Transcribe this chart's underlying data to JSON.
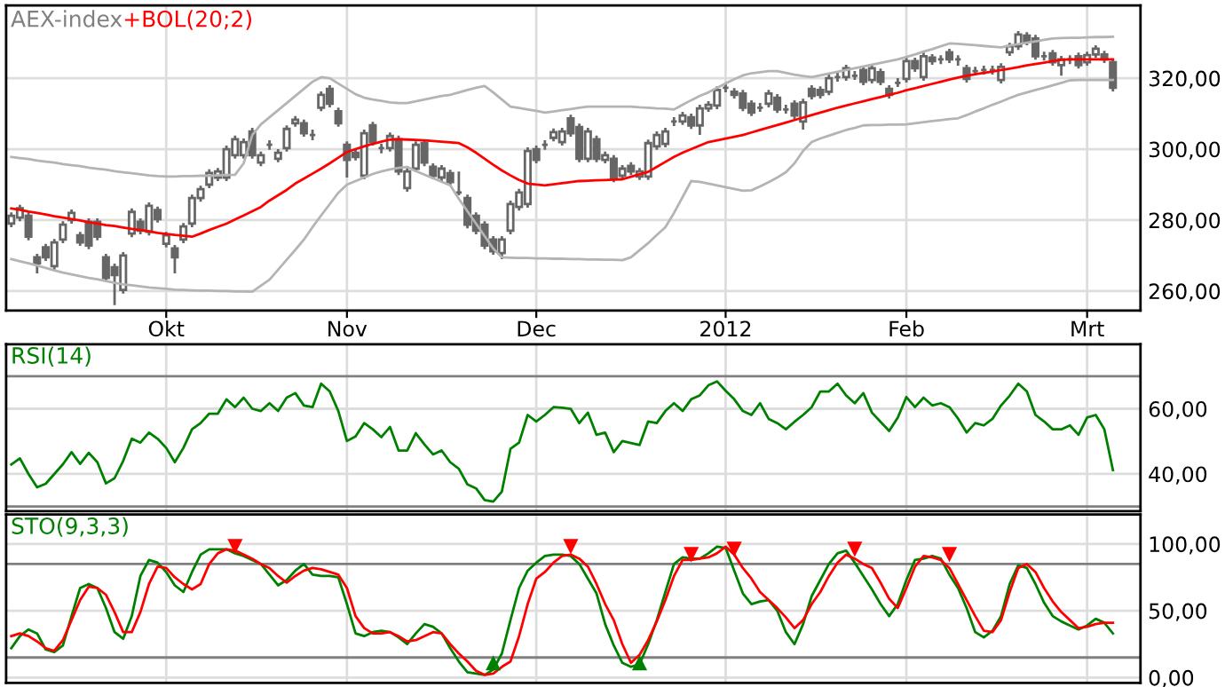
{
  "chart_data": [
    {
      "type": "candlestick",
      "title": "AEX-index",
      "color": "#666666",
      "legend": "top left",
      "grid": true,
      "categories": [
        null,
        null,
        null,
        null,
        null,
        null,
        null,
        null,
        null,
        null,
        null,
        null,
        null,
        null,
        null,
        null,
        null,
        null,
        "Okt",
        null,
        null,
        null,
        null,
        null,
        null,
        null,
        null,
        null,
        null,
        null,
        null,
        null,
        null,
        null,
        null,
        null,
        null,
        null,
        null,
        "Nov",
        null,
        null,
        null,
        null,
        null,
        null,
        null,
        null,
        null,
        null,
        null,
        null,
        null,
        null,
        null,
        null,
        null,
        null,
        null,
        null,
        null,
        "Dec",
        null,
        null,
        null,
        null,
        null,
        null,
        null,
        null,
        null,
        null,
        null,
        null,
        null,
        null,
        null,
        null,
        null,
        null,
        null,
        null,
        null,
        "2012",
        null,
        null,
        null,
        null,
        null,
        null,
        null,
        null,
        null,
        null,
        null,
        null,
        null,
        null,
        null,
        null,
        null,
        null,
        null,
        null,
        "Feb",
        null,
        null,
        null,
        null,
        null,
        null,
        null,
        null,
        null,
        null,
        null,
        null,
        null,
        null,
        null,
        null,
        null,
        null,
        null,
        null,
        "Mrt",
        null,
        null,
        null
      ],
      "ohlc": [
        [
          279.0,
          282.2,
          278.0,
          281.2
        ],
        [
          280.7,
          284.3,
          279.7,
          283.3
        ],
        [
          281.2,
          282.2,
          274.3,
          275.3
        ],
        [
          269.5,
          270.5,
          265.0,
          267.8
        ],
        [
          272.3,
          273.3,
          268.5,
          269.5
        ],
        [
          267.0,
          274.7,
          266.0,
          273.7
        ],
        [
          274.5,
          279.7,
          273.5,
          278.7
        ],
        [
          280.0,
          283.0,
          279.0,
          282.0
        ],
        [
          275.7,
          276.7,
          272.7,
          273.7
        ],
        [
          279.5,
          280.5,
          271.8,
          272.8
        ],
        [
          279.5,
          280.5,
          274.3,
          275.3
        ],
        [
          269.5,
          270.5,
          262.7,
          263.7
        ],
        [
          266.7,
          267.7,
          256.0,
          264.5
        ],
        [
          260.3,
          271.0,
          259.3,
          270.0
        ],
        [
          276.2,
          283.3,
          275.2,
          282.3
        ],
        [
          279.5,
          280.5,
          276.0,
          277.0
        ],
        [
          276.7,
          285.0,
          275.7,
          284.0
        ],
        [
          282.8,
          283.8,
          279.3,
          280.3
        ],
        [
          273.3,
          276.7,
          272.3,
          275.7
        ],
        [
          272.0,
          273.0,
          265.0,
          269.5
        ],
        [
          274.5,
          279.2,
          273.5,
          278.2
        ],
        [
          279.0,
          287.2,
          278.0,
          286.2
        ],
        [
          286.2,
          289.7,
          285.2,
          288.7
        ],
        [
          290.0,
          294.3,
          289.0,
          293.3
        ],
        [
          292.0,
          294.7,
          291.0,
          293.7
        ],
        [
          292.0,
          301.0,
          291.0,
          300.0
        ],
        [
          298.3,
          303.8,
          297.3,
          302.8
        ],
        [
          298.3,
          303.0,
          297.3,
          302.0
        ],
        [
          305.0,
          306.0,
          297.3,
          298.3
        ],
        [
          296.2,
          299.3,
          295.2,
          298.3
        ],
        [
          301.2,
          302.5,
          299.8,
          301.2
        ],
        [
          297.3,
          300.0,
          296.3,
          299.0
        ],
        [
          300.3,
          306.7,
          299.3,
          305.7
        ],
        [
          307.3,
          309.3,
          306.3,
          308.3
        ],
        [
          307.3,
          308.3,
          303.5,
          304.5
        ],
        [
          304.0,
          305.5,
          302.5,
          304.0
        ],
        [
          311.7,
          316.3,
          310.7,
          315.3
        ],
        [
          317.0,
          318.0,
          311.8,
          312.8
        ],
        [
          310.7,
          311.7,
          306.3,
          307.3
        ],
        [
          301.2,
          302.2,
          292.0,
          297.0
        ],
        [
          299.0,
          300.0,
          296.8,
          297.8
        ],
        [
          292.5,
          305.5,
          291.5,
          304.5
        ],
        [
          306.7,
          307.7,
          301.0,
          302.0
        ],
        [
          300.3,
          301.5,
          298.8,
          300.3
        ],
        [
          300.3,
          304.7,
          299.3,
          303.7
        ],
        [
          302.8,
          303.8,
          292.7,
          293.7
        ],
        [
          289.0,
          294.7,
          288.0,
          293.7
        ],
        [
          294.5,
          302.2,
          293.5,
          301.2
        ],
        [
          301.7,
          302.7,
          295.2,
          296.2
        ],
        [
          295.0,
          296.0,
          291.5,
          292.5
        ],
        [
          292.0,
          295.5,
          291.0,
          294.5
        ],
        [
          293.2,
          294.2,
          289.7,
          290.7
        ],
        [
          287.8,
          293.7,
          287.0,
          287.8
        ],
        [
          286.2,
          287.2,
          277.7,
          278.7
        ],
        [
          281.2,
          282.2,
          276.0,
          277.0
        ],
        [
          278.7,
          279.7,
          271.8,
          272.8
        ],
        [
          274.5,
          275.5,
          270.2,
          271.2
        ],
        [
          270.7,
          275.5,
          269.0,
          274.5
        ],
        [
          277.0,
          285.5,
          276.0,
          284.5
        ],
        [
          283.7,
          288.8,
          282.7,
          287.8
        ],
        [
          284.5,
          300.5,
          283.5,
          299.5
        ],
        [
          300.0,
          301.0,
          296.0,
          297.0
        ],
        [
          301.2,
          302.5,
          299.8,
          301.2
        ],
        [
          303.2,
          305.8,
          302.2,
          304.8
        ],
        [
          302.0,
          306.0,
          301.0,
          305.0
        ],
        [
          308.7,
          309.7,
          303.5,
          304.5
        ],
        [
          306.2,
          307.2,
          296.3,
          297.3
        ],
        [
          297.3,
          306.0,
          296.3,
          305.0
        ],
        [
          302.8,
          303.8,
          296.3,
          297.3
        ],
        [
          297.0,
          299.3,
          296.0,
          298.3
        ],
        [
          297.3,
          298.3,
          290.7,
          291.7
        ],
        [
          292.5,
          295.5,
          291.5,
          294.5
        ],
        [
          295.3,
          296.3,
          292.7,
          293.7
        ],
        [
          292.3,
          294.7,
          291.3,
          293.7
        ],
        [
          292.3,
          302.7,
          291.3,
          301.7
        ],
        [
          300.8,
          305.0,
          299.8,
          304.0
        ],
        [
          301.5,
          306.0,
          300.5,
          305.0
        ],
        [
          307.8,
          309.0,
          306.5,
          307.8
        ],
        [
          307.8,
          310.5,
          306.8,
          309.5
        ],
        [
          309.0,
          310.0,
          305.7,
          306.7
        ],
        [
          306.7,
          312.5,
          304.0,
          311.5
        ],
        [
          311.5,
          313.5,
          310.5,
          312.5
        ],
        [
          312.3,
          317.7,
          311.3,
          316.7
        ],
        [
          317.3,
          318.5,
          316.0,
          317.3
        ],
        [
          316.2,
          317.2,
          314.3,
          315.3
        ],
        [
          315.7,
          316.7,
          310.7,
          311.7
        ],
        [
          312.8,
          313.8,
          309.3,
          310.3
        ],
        [
          311.7,
          313.0,
          310.5,
          311.7
        ],
        [
          312.8,
          316.7,
          311.8,
          315.7
        ],
        [
          314.5,
          315.5,
          310.2,
          311.2
        ],
        [
          311.2,
          312.5,
          310.0,
          311.2
        ],
        [
          312.8,
          313.8,
          308.5,
          309.5
        ],
        [
          307.8,
          314.2,
          305.5,
          313.2
        ],
        [
          317.0,
          318.0,
          314.0,
          315.0
        ],
        [
          316.7,
          317.7,
          314.3,
          315.3
        ],
        [
          316.2,
          321.0,
          315.2,
          320.0
        ],
        [
          320.3,
          321.5,
          319.0,
          320.3
        ],
        [
          320.3,
          323.8,
          319.3,
          322.8
        ],
        [
          320.7,
          322.0,
          319.5,
          320.7
        ],
        [
          322.3,
          323.3,
          318.0,
          319.0
        ],
        [
          319.5,
          323.8,
          318.5,
          322.8
        ],
        [
          321.7,
          322.7,
          318.0,
          319.0
        ],
        [
          317.0,
          318.0,
          314.3,
          315.3
        ],
        [
          318.7,
          320.0,
          317.5,
          318.7
        ],
        [
          319.8,
          325.8,
          318.8,
          324.8
        ],
        [
          324.8,
          325.8,
          321.8,
          322.8
        ],
        [
          320.3,
          327.2,
          319.3,
          326.2
        ],
        [
          325.8,
          326.8,
          323.8,
          324.8
        ],
        [
          325.3,
          326.5,
          324.0,
          325.3
        ],
        [
          327.3,
          328.3,
          324.3,
          325.3
        ],
        [
          325.3,
          326.5,
          323.5,
          325.3
        ],
        [
          322.8,
          323.8,
          318.8,
          319.8
        ],
        [
          322.0,
          323.2,
          320.8,
          322.0
        ],
        [
          322.3,
          323.5,
          321.0,
          322.3
        ],
        [
          322.3,
          323.5,
          321.0,
          322.3
        ],
        [
          319.5,
          324.2,
          318.5,
          323.2
        ],
        [
          327.3,
          330.0,
          326.3,
          329.0
        ],
        [
          329.0,
          333.3,
          328.0,
          332.3
        ],
        [
          332.0,
          333.0,
          329.3,
          330.3
        ],
        [
          331.2,
          332.2,
          325.2,
          326.2
        ],
        [
          326.2,
          327.5,
          325.0,
          326.2
        ],
        [
          327.0,
          328.0,
          323.5,
          324.5
        ],
        [
          323.7,
          326.3,
          320.7,
          325.3
        ],
        [
          325.3,
          326.5,
          324.0,
          325.3
        ],
        [
          326.2,
          327.2,
          322.7,
          323.7
        ],
        [
          324.5,
          327.5,
          323.5,
          326.5
        ],
        [
          326.7,
          329.3,
          325.7,
          328.3
        ],
        [
          326.7,
          327.7,
          324.3,
          325.3
        ],
        [
          324.5,
          325.5,
          316.3,
          317.3
        ]
      ],
      "series": [
        {
          "type": "line",
          "name": "+BOL(20;2)",
          "color": "#ff0000",
          "values": [
            283.3,
            282.9,
            282.4,
            282,
            281.6,
            281.1,
            280.7,
            280.3,
            279.9,
            279.4,
            279,
            278.6,
            278.3,
            277.9,
            277.5,
            277.2,
            276.8,
            276.4,
            276.1,
            275.8,
            275.6,
            275.3,
            276.2,
            277.2,
            278.1,
            279,
            280.2,
            281.3,
            282.5,
            283.7,
            285.5,
            287,
            288.5,
            290.3,
            291.7,
            293.1,
            294.5,
            296,
            297.6,
            299.2,
            300,
            300.8,
            301.5,
            302.1,
            302.7,
            302.8,
            302.7,
            302.6,
            302.5,
            302.3,
            302.1,
            301.9,
            301.7,
            300.5,
            299,
            297.3,
            295.6,
            294,
            292.6,
            291.3,
            290.3,
            290,
            289.8,
            290.1,
            290.4,
            290.7,
            291,
            291.1,
            291.2,
            291.3,
            291.4,
            291.5,
            292.2,
            292.9,
            293.6,
            295,
            296.4,
            297.8,
            299,
            300,
            301,
            302,
            302.5,
            303,
            303.5,
            304,
            304.7,
            305.4,
            306.1,
            306.8,
            307.5,
            308.2,
            308.9,
            309.6,
            310.3,
            311,
            311.7,
            312.3,
            312.9,
            313.5,
            314.1,
            314.7,
            315.3,
            315.9,
            316.6,
            317.2,
            317.8,
            318.4,
            319,
            319.6,
            320.2,
            320.7,
            321.1,
            321.5,
            321.9,
            322.3,
            322.7,
            323.1,
            323.6,
            324,
            324.4,
            324.8,
            325.2,
            325.3,
            325.3,
            325.3,
            325.3,
            325.3,
            325.3
          ]
        },
        {
          "type": "line",
          "color": "#b4b4b4",
          "values": [
            297.8,
            297.5,
            297.2,
            296.8,
            296.5,
            296.2,
            295.8,
            295.5,
            295.2,
            294.8,
            294.5,
            294.2,
            293.8,
            293.5,
            293.2,
            292.9,
            292.6,
            292.4,
            292.3,
            292.3,
            292.4,
            292.4,
            292.5,
            292.5,
            292.6,
            292.7,
            292.8,
            296,
            304,
            307,
            309,
            311,
            313,
            315,
            317,
            319,
            320.3,
            320,
            318.5,
            317,
            315.5,
            314.5,
            314,
            313.6,
            313.2,
            313,
            313,
            313.5,
            314,
            314.5,
            315,
            315.3,
            316,
            316.7,
            317.3,
            317.8,
            316,
            314,
            312,
            311.6,
            311.2,
            310.8,
            310.3,
            310.6,
            311,
            311.3,
            311.7,
            312,
            312,
            312,
            312,
            312,
            312,
            311.8,
            311.7,
            311.5,
            311.4,
            311.2,
            312.5,
            313.8,
            315,
            316,
            317.3,
            318.5,
            319.7,
            320.8,
            321.4,
            321.7,
            322,
            322,
            321.5,
            321,
            320.6,
            320.3,
            320.8,
            321.3,
            321.8,
            322.3,
            322.8,
            323.3,
            323.8,
            324.3,
            324.8,
            325.3,
            326,
            326.7,
            327.5,
            328.2,
            329,
            329.8,
            329.7,
            329.5,
            329.3,
            329.1,
            328.9,
            328.7,
            329.2,
            329.6,
            330,
            330.4,
            330.8,
            331.2,
            331.3,
            331.4,
            331.4,
            331.5,
            331.6,
            331.6,
            331.7
          ]
        },
        {
          "type": "line",
          "color": "#b4b4b4",
          "values": [
            269,
            268.4,
            267.8,
            267.2,
            266.5,
            265.8,
            265.2,
            264.7,
            264.2,
            263.7,
            263.3,
            262.8,
            262.3,
            261.9,
            261.6,
            261.3,
            261,
            260.8,
            260.6,
            260.4,
            260.3,
            260.2,
            260.1,
            260.1,
            260,
            260,
            259.9,
            259.9,
            259.8,
            261.5,
            263.2,
            266,
            268.8,
            271.6,
            274.5,
            278,
            281.3,
            284.5,
            287.7,
            290,
            291,
            292,
            293,
            293.7,
            294.3,
            294.7,
            295,
            293.8,
            292.8,
            291.8,
            290.8,
            289.8,
            286,
            282.5,
            279,
            275.5,
            272,
            269.5,
            269.4,
            269.3,
            269.3,
            269.2,
            269.2,
            269.1,
            269.1,
            269,
            269,
            268.9,
            268.9,
            268.8,
            268.8,
            268.7,
            269.5,
            271.5,
            273.5,
            275.8,
            278,
            282,
            286.5,
            291,
            290.8,
            290.3,
            289.8,
            289.3,
            288.8,
            288.3,
            288.4,
            289.5,
            290.7,
            292,
            293.5,
            296,
            299.5,
            302,
            303,
            303.8,
            304.6,
            305.4,
            306,
            306.7,
            306.8,
            306.8,
            306.9,
            306.9,
            307,
            307.3,
            307.6,
            307.9,
            308.2,
            308.5,
            308.7,
            309.6,
            310.6,
            311.5,
            312.5,
            313.4,
            314.4,
            315.3,
            316,
            316.7,
            317.3,
            318,
            318.7,
            319.4,
            319.5,
            319.5,
            319.5,
            319.5,
            319.5
          ]
        }
      ],
      "ylim": [
        254.5,
        340.5
      ],
      "yticks": [
        {
          "value": 260,
          "label": "260,00"
        },
        {
          "value": 280,
          "label": "280,00"
        },
        {
          "value": 300,
          "label": "300,00"
        },
        {
          "value": 320,
          "label": "320,00"
        }
      ]
    },
    {
      "type": "line",
      "legend": "top left",
      "grid": true,
      "tick_labels": "y",
      "categories": [
        null,
        null,
        null,
        null,
        null,
        null,
        null,
        null,
        null,
        null,
        null,
        null,
        null,
        null,
        null,
        null,
        null,
        null,
        null,
        null,
        null,
        null,
        null,
        null,
        null,
        null,
        null,
        null,
        null,
        null,
        null,
        null,
        null,
        null,
        null,
        null,
        null,
        null,
        null,
        null,
        null,
        null,
        null,
        null,
        null,
        null,
        null,
        null,
        null,
        null,
        null,
        null,
        null,
        null,
        null,
        null,
        null,
        null,
        null,
        null,
        null,
        null,
        null,
        null,
        null,
        null,
        null,
        null,
        null,
        null,
        null,
        null,
        null,
        null,
        null,
        null,
        null,
        null,
        null,
        null,
        null,
        null,
        null,
        null,
        null,
        null,
        null,
        null,
        null,
        null,
        null,
        null,
        null,
        null,
        null,
        null,
        null,
        null,
        null,
        null,
        null,
        null,
        null,
        null,
        null,
        null,
        null,
        null,
        null,
        null,
        null,
        null,
        null,
        null,
        null,
        null,
        null,
        null,
        null,
        null,
        null,
        null,
        null,
        null,
        null,
        null,
        null,
        null,
        null
      ],
      "series": [
        {
          "name": "RSI(14)",
          "color": "#008000",
          "values": [
            42.9,
            44.8,
            40,
            35.9,
            37,
            40,
            43,
            46.7,
            43.1,
            46.5,
            43.6,
            37.1,
            38.7,
            44,
            50.8,
            49.6,
            52.7,
            50.8,
            48,
            43.6,
            48,
            53.7,
            55.6,
            58.5,
            58.5,
            62.9,
            60.5,
            63.4,
            60,
            59.3,
            61.7,
            59.3,
            63.4,
            64.8,
            61,
            60.5,
            67.7,
            65.3,
            59.3,
            50.1,
            51.5,
            55.6,
            53.7,
            51.3,
            54.4,
            47.2,
            47.2,
            52.5,
            49.1,
            46,
            47.2,
            43.6,
            41.6,
            36.8,
            35.6,
            32,
            31.5,
            34.6,
            47.7,
            49.6,
            58.1,
            56.1,
            58.1,
            60.5,
            60.3,
            60,
            55.6,
            58.8,
            52,
            52.7,
            46.7,
            50.1,
            49.5,
            48.9,
            56.1,
            55.6,
            59.3,
            61.7,
            59.3,
            62.9,
            64.1,
            67.2,
            68.4,
            65.5,
            62.9,
            59.3,
            58.1,
            61.7,
            56.9,
            55.6,
            53.7,
            56,
            58.1,
            60.5,
            65.3,
            65.3,
            67.7,
            64.1,
            61.7,
            64.8,
            58.8,
            56,
            53.2,
            57.3,
            63.6,
            60.5,
            63.4,
            61,
            61.7,
            60.5,
            57,
            52.7,
            55.6,
            54.9,
            56.9,
            61,
            64,
            67.7,
            65.3,
            58.1,
            56.1,
            53.7,
            53.7,
            54.9,
            52,
            57.3,
            58.1,
            53.7,
            41.2
          ]
        }
      ],
      "ref_lines": [
        {
          "axis": "y",
          "value": 70,
          "color": "#808080"
        },
        {
          "axis": "y",
          "value": 30,
          "color": "#808080"
        }
      ],
      "ylim": [
        28.6,
        79.8
      ],
      "yticks": [
        {
          "value": 40,
          "label": "40,00"
        },
        {
          "value": 60,
          "label": "60,00"
        }
      ]
    },
    {
      "type": "line",
      "legend": "top left",
      "grid": true,
      "tick_labels": "y",
      "categories": [
        null,
        null,
        null,
        null,
        null,
        null,
        null,
        null,
        null,
        null,
        null,
        null,
        null,
        null,
        null,
        null,
        null,
        null,
        null,
        null,
        null,
        null,
        null,
        null,
        null,
        null,
        null,
        null,
        null,
        null,
        null,
        null,
        null,
        null,
        null,
        null,
        null,
        null,
        null,
        null,
        null,
        null,
        null,
        null,
        null,
        null,
        null,
        null,
        null,
        null,
        null,
        null,
        null,
        null,
        null,
        null,
        null,
        null,
        null,
        null,
        null,
        null,
        null,
        null,
        null,
        null,
        null,
        null,
        null,
        null,
        null,
        null,
        null,
        null,
        null,
        null,
        null,
        null,
        null,
        null,
        null,
        null,
        null,
        null,
        null,
        null,
        null,
        null,
        null,
        null,
        null,
        null,
        null,
        null,
        null,
        null,
        null,
        null,
        null,
        null,
        null,
        null,
        null,
        null,
        null,
        null,
        null,
        null,
        null,
        null,
        null,
        null,
        null,
        null,
        null,
        null,
        null,
        null,
        null,
        null,
        null,
        null,
        null,
        null,
        null,
        null,
        null,
        null,
        null
      ],
      "series": [
        {
          "name": "STO(9,3,3)",
          "color": "#008000",
          "values": [
            22,
            31,
            36,
            33,
            21,
            19,
            24,
            46,
            67,
            70,
            67,
            52,
            34,
            29,
            46,
            76,
            88,
            86,
            79,
            69,
            64,
            79,
            92,
            96,
            96,
            96,
            93,
            91,
            88,
            85,
            77,
            69,
            73,
            80,
            85,
            77,
            76,
            76,
            75,
            55,
            33,
            31,
            34,
            35,
            34,
            30,
            25,
            33,
            40,
            38,
            33,
            22,
            12,
            4,
            3,
            2,
            6,
            18,
            43,
            67,
            80,
            86,
            91,
            92,
            92,
            91,
            85,
            74,
            63,
            40,
            24,
            11,
            8,
            10,
            25,
            43,
            64,
            85,
            90,
            89,
            89,
            93,
            98,
            97,
            80,
            63,
            55,
            57,
            58,
            50,
            34,
            25,
            40,
            61,
            73,
            85,
            93,
            95,
            86,
            76,
            66,
            55,
            46,
            55,
            73,
            88,
            89,
            91,
            89,
            77,
            67,
            52,
            34,
            30,
            35,
            46,
            70,
            84,
            82,
            70,
            56,
            46,
            42,
            39,
            36,
            39,
            44,
            41,
            33
          ]
        },
        {
          "color": "#ff0000",
          "values": [
            31,
            33,
            31,
            27,
            22,
            20,
            28,
            43,
            58,
            68,
            67,
            62,
            49,
            34,
            34,
            49,
            70,
            83,
            82,
            75,
            70,
            66,
            70,
            85,
            93,
            96,
            95,
            92,
            89,
            85,
            82,
            76,
            71,
            76,
            80,
            82,
            81,
            79,
            77,
            67,
            46,
            37,
            33,
            33,
            34,
            31,
            27,
            28,
            31,
            34,
            33,
            25,
            18,
            12,
            5,
            2,
            3,
            8,
            12,
            31,
            55,
            74,
            79,
            86,
            91,
            92,
            89,
            83,
            70,
            55,
            43,
            25,
            11,
            17,
            28,
            42,
            58,
            76,
            88,
            88,
            89,
            90,
            93,
            98,
            92,
            82,
            74,
            64,
            58,
            52,
            45,
            37,
            43,
            55,
            64,
            76,
            86,
            92,
            89,
            85,
            82,
            71,
            59,
            52,
            67,
            83,
            91,
            90,
            88,
            82,
            70,
            58,
            46,
            35,
            34,
            43,
            64,
            82,
            85,
            79,
            67,
            57,
            49,
            43,
            37,
            38,
            40,
            41,
            41
          ]
        },
        {
          "type": "scatter",
          "marker": "triangle",
          "color": "#ff0000",
          "values": [
            null,
            null,
            null,
            null,
            null,
            null,
            null,
            null,
            null,
            null,
            null,
            null,
            null,
            null,
            null,
            null,
            null,
            null,
            null,
            null,
            null,
            null,
            null,
            null,
            null,
            null,
            98,
            null,
            null,
            null,
            null,
            null,
            null,
            null,
            null,
            null,
            null,
            null,
            null,
            null,
            null,
            null,
            null,
            null,
            null,
            null,
            null,
            null,
            null,
            null,
            null,
            null,
            null,
            null,
            null,
            null,
            null,
            null,
            null,
            null,
            null,
            null,
            null,
            null,
            null,
            98,
            null,
            null,
            null,
            null,
            null,
            null,
            null,
            null,
            null,
            null,
            null,
            null,
            null,
            92,
            null,
            null,
            null,
            null,
            96,
            null,
            null,
            null,
            null,
            null,
            null,
            null,
            null,
            null,
            null,
            null,
            null,
            null,
            96,
            null,
            null,
            null,
            null,
            null,
            null,
            null,
            null,
            null,
            null,
            92,
            null,
            null,
            null,
            null,
            null,
            null,
            null,
            null,
            null,
            null,
            null,
            null,
            null,
            null,
            null,
            null,
            null,
            null,
            null
          ]
        },
        {
          "type": "scatter",
          "marker": "triangle",
          "color": "#008000",
          "values": [
            null,
            null,
            null,
            null,
            null,
            null,
            null,
            null,
            null,
            null,
            null,
            null,
            null,
            null,
            null,
            null,
            null,
            null,
            null,
            null,
            null,
            null,
            null,
            null,
            null,
            null,
            null,
            null,
            null,
            null,
            null,
            null,
            null,
            null,
            null,
            null,
            null,
            null,
            null,
            null,
            null,
            null,
            null,
            null,
            null,
            null,
            null,
            null,
            null,
            null,
            null,
            null,
            null,
            null,
            null,
            null,
            11,
            null,
            null,
            null,
            null,
            null,
            null,
            null,
            null,
            null,
            null,
            null,
            null,
            null,
            null,
            null,
            null,
            11,
            null,
            null,
            null,
            null,
            null,
            null,
            null,
            null,
            null,
            null,
            null,
            null,
            null,
            null,
            null,
            null,
            null,
            null,
            null,
            null,
            null,
            null,
            null,
            null,
            null,
            null,
            null,
            null,
            null,
            null,
            null,
            null,
            null,
            null,
            null,
            null,
            null,
            null,
            null,
            null,
            null,
            null,
            null,
            null,
            null,
            null,
            null,
            null,
            null,
            null,
            null,
            null,
            null,
            null,
            null
          ]
        }
      ],
      "ref_lines": [
        {
          "axis": "y",
          "value": 85,
          "color": "#808080"
        },
        {
          "axis": "y",
          "value": 15,
          "color": "#808080"
        }
      ],
      "ylim": [
        -4,
        122
      ],
      "yticks": [
        {
          "value": 0,
          "label": "0,00"
        },
        {
          "value": 50,
          "label": "50,00"
        },
        {
          "value": 100,
          "label": "100,00"
        }
      ]
    }
  ]
}
